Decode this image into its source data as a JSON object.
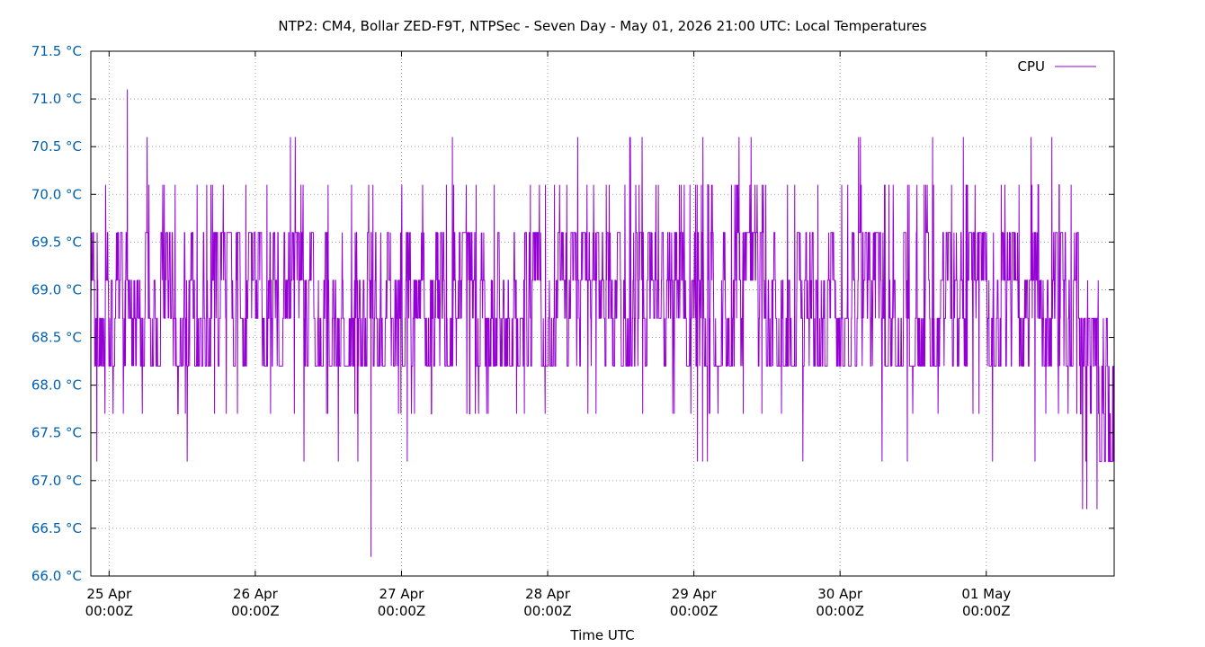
{
  "chart_data": {
    "type": "line",
    "title": "NTP2: CM4, Bollar ZED-F9T, NTPSec - Seven Day - May 01, 2026 21:00 UTC: Local Temperatures",
    "xlabel": "Time UTC",
    "ylabel": "",
    "ylim": [
      66.0,
      71.5
    ],
    "xlim": [
      "2026-04-24T21:00Z",
      "2026-05-01T21:00Z"
    ],
    "y_ticks": [
      {
        "value": 66.0,
        "label": "66.0 °C"
      },
      {
        "value": 66.5,
        "label": "66.5 °C"
      },
      {
        "value": 67.0,
        "label": "67.0 °C"
      },
      {
        "value": 67.5,
        "label": "67.5 °C"
      },
      {
        "value": 68.0,
        "label": "68.0 °C"
      },
      {
        "value": 68.5,
        "label": "68.5 °C"
      },
      {
        "value": 69.0,
        "label": "69.0 °C"
      },
      {
        "value": 69.5,
        "label": "69.5 °C"
      },
      {
        "value": 70.0,
        "label": "70.0 °C"
      },
      {
        "value": 70.5,
        "label": "70.5 °C"
      },
      {
        "value": 71.0,
        "label": "71.0 °C"
      },
      {
        "value": 71.5,
        "label": "71.5 °C"
      }
    ],
    "x_ticks": [
      {
        "value": "2026-04-25T00:00Z",
        "line1": "25 Apr",
        "line2": "00:00Z"
      },
      {
        "value": "2026-04-26T00:00Z",
        "line1": "26 Apr",
        "line2": "00:00Z"
      },
      {
        "value": "2026-04-27T00:00Z",
        "line1": "27 Apr",
        "line2": "00:00Z"
      },
      {
        "value": "2026-04-28T00:00Z",
        "line1": "28 Apr",
        "line2": "00:00Z"
      },
      {
        "value": "2026-04-29T00:00Z",
        "line1": "29 Apr",
        "line2": "00:00Z"
      },
      {
        "value": "2026-04-30T00:00Z",
        "line1": "30 Apr",
        "line2": "00:00Z"
      },
      {
        "value": "2026-05-01T00:00Z",
        "line1": "01 May",
        "line2": "00:00Z"
      }
    ],
    "grid": true,
    "legend": "top-right",
    "series": [
      {
        "name": "CPU",
        "color": "#9400d3",
        "min": 66.2,
        "max": 71.1,
        "typical_low": 68.2,
        "typical_high": 69.6,
        "levels": [
          66.2,
          66.7,
          67.2,
          67.7,
          68.2,
          68.7,
          69.1,
          69.6,
          70.1,
          70.6,
          71.1
        ],
        "peak": {
          "x": "2026-04-25T03:00Z",
          "y": 71.1
        },
        "trough": {
          "x": "2026-04-26T19:00Z",
          "y": 66.2
        }
      }
    ]
  },
  "colors": {
    "series_line": "#9400d3",
    "ytick_text": "#0060ad",
    "grid": "#a0a0a0"
  }
}
